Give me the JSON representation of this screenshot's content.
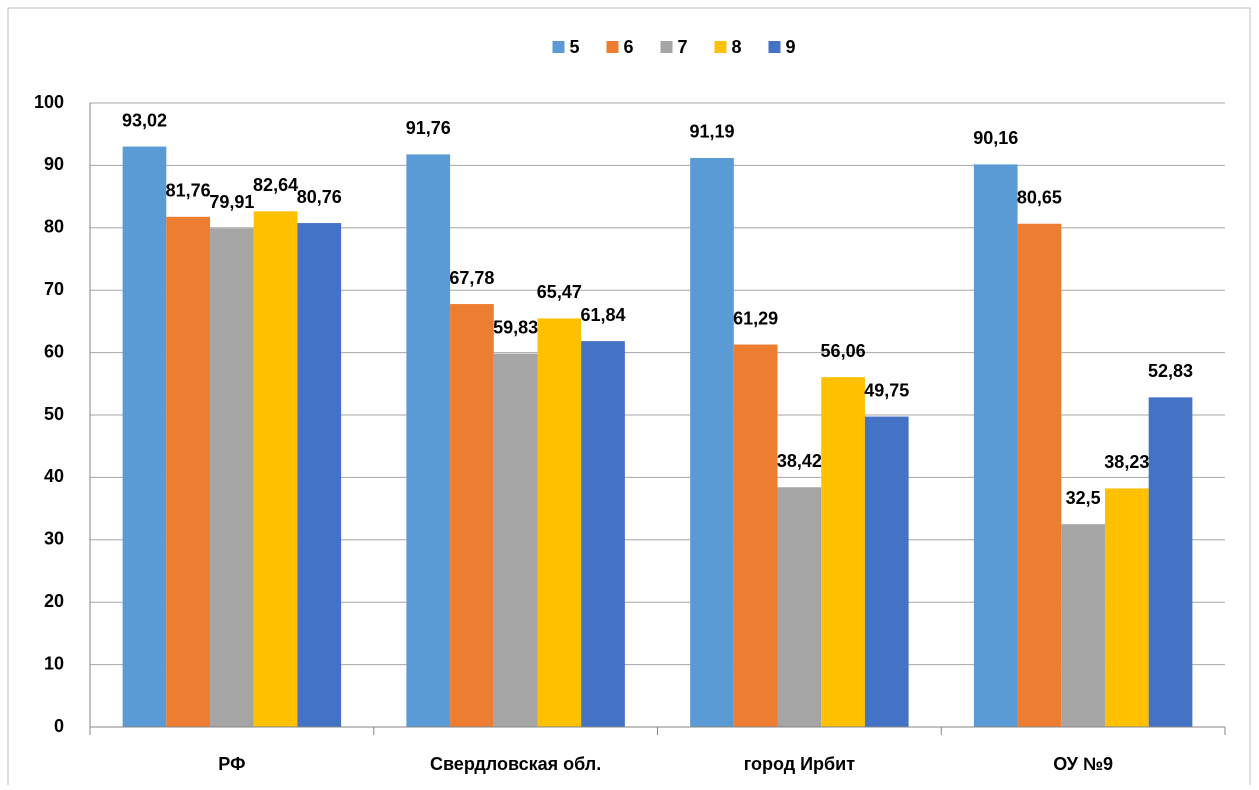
{
  "chart_data": {
    "type": "bar",
    "categories": [
      "РФ",
      "Свердловская обл.",
      "город Ирбит",
      "ОУ №9"
    ],
    "series": [
      {
        "name": "5",
        "color": "#5b9bd5",
        "values": [
          93.02,
          91.76,
          91.19,
          90.16
        ],
        "value_labels": [
          "93,02",
          "91,76",
          "91,19",
          "90,16"
        ]
      },
      {
        "name": "6",
        "color": "#ed7d31",
        "values": [
          81.76,
          67.78,
          61.29,
          80.65
        ],
        "value_labels": [
          "81,76",
          "67,78",
          "61,29",
          "80,65"
        ]
      },
      {
        "name": "7",
        "color": "#a5a5a5",
        "values": [
          79.91,
          59.83,
          38.42,
          32.5
        ],
        "value_labels": [
          "79,91",
          "59,83",
          "38,42",
          "32,5"
        ]
      },
      {
        "name": "8",
        "color": "#ffc000",
        "values": [
          82.64,
          65.47,
          56.06,
          38.23
        ],
        "value_labels": [
          "82,64",
          "65,47",
          "56,06",
          "38,23"
        ]
      },
      {
        "name": "9",
        "color": "#4472c4",
        "values": [
          80.76,
          61.84,
          49.75,
          52.83
        ],
        "value_labels": [
          "80,76",
          "61,84",
          "49,75",
          "52,83"
        ]
      }
    ],
    "ylim": [
      0,
      100
    ],
    "yticks": [
      0,
      10,
      20,
      30,
      40,
      50,
      60,
      70,
      80,
      90,
      100
    ],
    "grid": true,
    "legend": "top"
  }
}
